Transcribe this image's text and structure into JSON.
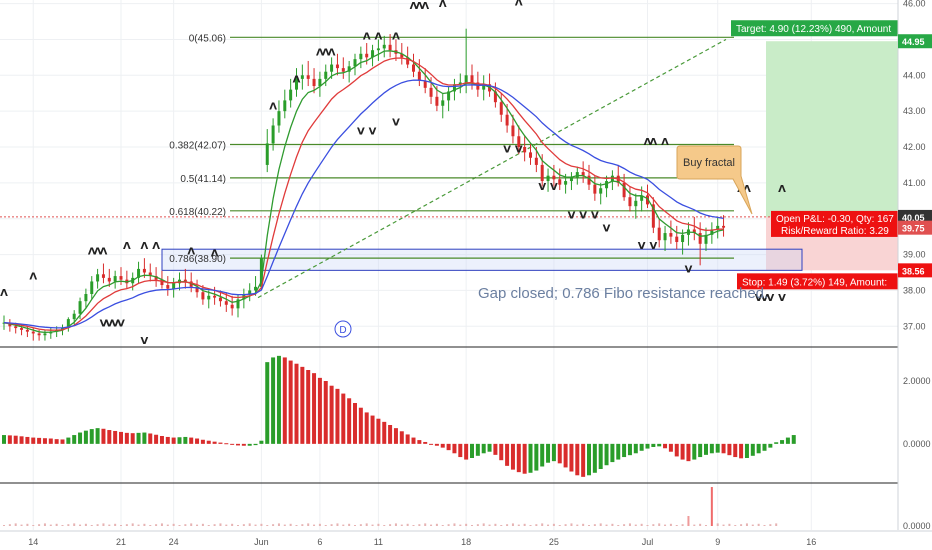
{
  "chart_data": {
    "type": "candlestick",
    "price_axis": {
      "ticks": [
        "46.00",
        "45.00",
        "44.00",
        "43.00",
        "42.00",
        "41.00",
        "40.00",
        "39.00",
        "38.00",
        "37.00"
      ],
      "tick_values": [
        46,
        45,
        44,
        43,
        42,
        41,
        40,
        39,
        38,
        37
      ],
      "range": [
        36.45,
        46.1
      ]
    },
    "x_axis": {
      "labels": [
        "14",
        "21",
        "24",
        "Jun",
        "6",
        "11",
        "18",
        "25",
        "Jul",
        "9",
        "16"
      ],
      "bar_index": [
        5,
        20,
        29,
        44,
        54,
        64,
        79,
        94,
        110,
        122,
        138
      ]
    },
    "ohlc": [
      [
        37.1,
        37.3,
        36.9,
        37.1
      ],
      [
        37.1,
        37.2,
        36.85,
        37.0
      ],
      [
        37.0,
        37.1,
        36.8,
        36.95
      ],
      [
        36.95,
        37.05,
        36.75,
        36.9
      ],
      [
        36.9,
        37.0,
        36.7,
        36.85
      ],
      [
        36.85,
        36.95,
        36.6,
        36.8
      ],
      [
        36.8,
        36.9,
        36.6,
        36.75
      ],
      [
        36.75,
        36.9,
        36.6,
        36.8
      ],
      [
        36.8,
        36.95,
        36.65,
        36.85
      ],
      [
        36.85,
        37.0,
        36.7,
        36.9
      ],
      [
        36.9,
        37.05,
        36.75,
        36.95
      ],
      [
        36.95,
        37.25,
        36.85,
        37.2
      ],
      [
        37.2,
        37.45,
        37.05,
        37.35
      ],
      [
        37.35,
        37.8,
        37.2,
        37.7
      ],
      [
        37.7,
        38.05,
        37.5,
        37.9
      ],
      [
        37.9,
        38.4,
        37.75,
        38.25
      ],
      [
        38.25,
        38.6,
        38.05,
        38.45
      ],
      [
        38.45,
        38.75,
        38.2,
        38.35
      ],
      [
        38.35,
        38.6,
        38.1,
        38.25
      ],
      [
        38.25,
        38.55,
        38.05,
        38.4
      ],
      [
        38.4,
        38.65,
        38.15,
        38.3
      ],
      [
        38.3,
        38.55,
        38.05,
        38.2
      ],
      [
        38.2,
        38.5,
        38.0,
        38.35
      ],
      [
        38.35,
        38.8,
        38.2,
        38.6
      ],
      [
        38.6,
        38.9,
        38.35,
        38.5
      ],
      [
        38.5,
        38.75,
        38.25,
        38.4
      ],
      [
        38.4,
        38.65,
        38.1,
        38.3
      ],
      [
        38.3,
        38.55,
        38.05,
        38.15
      ],
      [
        38.15,
        38.4,
        37.85,
        38.05
      ],
      [
        38.05,
        38.35,
        37.8,
        38.2
      ],
      [
        38.2,
        38.5,
        38.0,
        38.3
      ],
      [
        38.3,
        38.6,
        38.05,
        38.25
      ],
      [
        38.25,
        38.5,
        37.95,
        38.1
      ],
      [
        38.1,
        38.3,
        37.8,
        37.95
      ],
      [
        37.95,
        38.15,
        37.6,
        37.75
      ],
      [
        37.75,
        38.0,
        37.5,
        37.85
      ],
      [
        37.85,
        38.1,
        37.6,
        37.8
      ],
      [
        37.8,
        38.0,
        37.55,
        37.7
      ],
      [
        37.7,
        37.95,
        37.4,
        37.6
      ],
      [
        37.6,
        37.85,
        37.3,
        37.5
      ],
      [
        37.5,
        37.9,
        37.25,
        37.75
      ],
      [
        37.75,
        38.05,
        37.5,
        37.9
      ],
      [
        37.9,
        38.2,
        37.7,
        38.0
      ],
      [
        38.0,
        38.4,
        37.85,
        38.1
      ],
      [
        38.1,
        39.0,
        38.0,
        38.9
      ],
      [
        41.5,
        42.5,
        41.3,
        42.1
      ],
      [
        42.1,
        42.8,
        41.9,
        42.6
      ],
      [
        42.6,
        43.3,
        42.4,
        43.0
      ],
      [
        43.0,
        43.6,
        42.8,
        43.3
      ],
      [
        43.3,
        43.9,
        43.1,
        43.6
      ],
      [
        43.6,
        44.2,
        43.4,
        43.9
      ],
      [
        43.9,
        44.3,
        43.6,
        44.0
      ],
      [
        44.0,
        44.4,
        43.7,
        43.9
      ],
      [
        43.9,
        44.2,
        43.5,
        43.7
      ],
      [
        43.7,
        44.1,
        43.4,
        43.9
      ],
      [
        43.9,
        44.3,
        43.7,
        44.1
      ],
      [
        44.1,
        44.5,
        43.9,
        44.3
      ],
      [
        44.3,
        44.6,
        44.0,
        44.2
      ],
      [
        44.2,
        44.5,
        43.9,
        44.1
      ],
      [
        44.1,
        44.4,
        43.8,
        44.25
      ],
      [
        44.25,
        44.6,
        44.0,
        44.45
      ],
      [
        44.45,
        44.8,
        44.2,
        44.6
      ],
      [
        44.6,
        44.9,
        44.3,
        44.5
      ],
      [
        44.5,
        44.85,
        44.25,
        44.7
      ],
      [
        44.7,
        45.0,
        44.4,
        44.75
      ],
      [
        44.75,
        45.1,
        44.5,
        44.85
      ],
      [
        44.85,
        45.15,
        44.5,
        44.7
      ],
      [
        44.7,
        45.0,
        44.4,
        44.6
      ],
      [
        44.6,
        44.9,
        44.3,
        44.5
      ],
      [
        44.5,
        44.8,
        44.2,
        44.3
      ],
      [
        44.3,
        44.6,
        43.95,
        44.1
      ],
      [
        44.1,
        44.45,
        43.7,
        43.85
      ],
      [
        43.85,
        44.2,
        43.5,
        43.65
      ],
      [
        43.65,
        43.95,
        43.2,
        43.4
      ],
      [
        43.4,
        43.7,
        43.0,
        43.15
      ],
      [
        43.15,
        43.5,
        42.8,
        43.3
      ],
      [
        43.3,
        43.7,
        43.0,
        43.55
      ],
      [
        43.55,
        43.9,
        43.3,
        43.75
      ],
      [
        43.75,
        44.05,
        43.5,
        43.8
      ],
      [
        43.8,
        45.3,
        43.5,
        44.0
      ],
      [
        44.0,
        44.3,
        43.6,
        43.8
      ],
      [
        43.8,
        44.1,
        43.4,
        43.6
      ],
      [
        43.6,
        44.0,
        43.3,
        43.75
      ],
      [
        43.75,
        44.05,
        43.4,
        43.55
      ],
      [
        43.55,
        43.8,
        43.1,
        43.25
      ],
      [
        43.25,
        43.5,
        42.7,
        42.9
      ],
      [
        42.9,
        43.2,
        42.4,
        42.6
      ],
      [
        42.6,
        42.9,
        42.1,
        42.3
      ],
      [
        42.3,
        42.6,
        41.8,
        42.0
      ],
      [
        42.0,
        42.3,
        41.6,
        41.85
      ],
      [
        41.85,
        42.1,
        41.5,
        41.7
      ],
      [
        41.7,
        42.0,
        41.3,
        41.5
      ],
      [
        41.5,
        41.8,
        40.9,
        41.05
      ],
      [
        41.05,
        41.4,
        40.75,
        41.2
      ],
      [
        41.2,
        41.5,
        40.9,
        41.1
      ],
      [
        41.1,
        41.4,
        40.8,
        40.95
      ],
      [
        40.95,
        41.25,
        40.7,
        41.05
      ],
      [
        41.05,
        41.3,
        40.8,
        41.15
      ],
      [
        41.15,
        41.45,
        40.95,
        41.3
      ],
      [
        41.3,
        41.6,
        41.0,
        41.2
      ],
      [
        41.2,
        41.5,
        40.8,
        40.95
      ],
      [
        40.95,
        41.2,
        40.5,
        40.7
      ],
      [
        40.7,
        41.0,
        40.4,
        40.85
      ],
      [
        40.85,
        41.2,
        40.6,
        41.05
      ],
      [
        41.05,
        41.35,
        40.8,
        41.2
      ],
      [
        41.2,
        41.5,
        40.9,
        41.0
      ],
      [
        41.0,
        41.25,
        40.5,
        40.6
      ],
      [
        40.6,
        40.9,
        40.2,
        40.35
      ],
      [
        40.35,
        40.7,
        40.0,
        40.5
      ],
      [
        40.5,
        40.9,
        40.2,
        40.65
      ],
      [
        40.65,
        40.95,
        40.3,
        40.4
      ],
      [
        40.4,
        40.6,
        39.6,
        39.75
      ],
      [
        39.75,
        40.0,
        39.2,
        39.4
      ],
      [
        39.4,
        39.8,
        39.1,
        39.6
      ],
      [
        39.6,
        39.95,
        39.3,
        39.5
      ],
      [
        39.5,
        39.8,
        39.15,
        39.35
      ],
      [
        39.35,
        39.7,
        39.0,
        39.55
      ],
      [
        39.55,
        39.9,
        39.25,
        39.7
      ],
      [
        39.7,
        40.05,
        39.4,
        39.6
      ],
      [
        39.6,
        39.9,
        38.7,
        39.3
      ],
      [
        39.3,
        39.75,
        39.1,
        39.55
      ],
      [
        39.55,
        39.9,
        39.3,
        39.7
      ],
      [
        39.7,
        40.05,
        39.45,
        39.8
      ],
      [
        39.8,
        40.1,
        39.5,
        39.75
      ]
    ],
    "ema_lines": [
      {
        "name": "",
        "color": "#2f9b2f",
        "period": 5
      },
      {
        "name": "",
        "color": "#e03b3b",
        "period": 10
      },
      {
        "name": "",
        "color": "#3b4fe0",
        "period": 20
      }
    ],
    "fibonacci": [
      {
        "label": "0(45.06)",
        "price": 45.06
      },
      {
        "label": "0.382(42.07)",
        "price": 42.07
      },
      {
        "label": "0.5(41.14)",
        "price": 41.14
      },
      {
        "label": "0.618(40.22)",
        "price": 40.22
      },
      {
        "label": "0.786(38.90)",
        "price": 38.9
      }
    ],
    "fractals_up": [
      [
        0,
        37.85
      ],
      [
        5,
        38.3
      ],
      [
        15,
        39.0
      ],
      [
        16,
        39.0
      ],
      [
        17,
        39.0
      ],
      [
        21,
        39.15
      ],
      [
        24,
        39.15
      ],
      [
        26,
        39.15
      ],
      [
        32,
        39.0
      ],
      [
        36,
        38.95
      ],
      [
        46,
        43.05
      ],
      [
        50,
        43.8
      ],
      [
        54,
        44.55
      ],
      [
        55,
        44.55
      ],
      [
        56,
        44.55
      ],
      [
        62,
        45.0
      ],
      [
        64,
        45.0
      ],
      [
        67,
        45.0
      ],
      [
        70,
        45.85
      ],
      [
        71,
        45.85
      ],
      [
        72,
        45.85
      ],
      [
        75,
        45.9
      ],
      [
        88,
        45.95
      ],
      [
        110,
        42.05
      ],
      [
        111,
        42.05
      ],
      [
        113,
        42.05
      ],
      [
        121,
        41.35
      ],
      [
        126,
        40.75
      ],
      [
        127,
        40.75
      ],
      [
        133,
        40.75
      ]
    ],
    "fractals_down": [
      [
        17,
        37.0
      ],
      [
        18,
        37.0
      ],
      [
        19,
        37.0
      ],
      [
        20,
        37.0
      ],
      [
        24,
        36.5
      ],
      [
        61,
        42.35
      ],
      [
        63,
        42.35
      ],
      [
        67,
        42.6
      ],
      [
        86,
        41.85
      ],
      [
        88,
        41.85
      ],
      [
        92,
        40.8
      ],
      [
        94,
        40.8
      ],
      [
        97,
        40.0
      ],
      [
        99,
        40.0
      ],
      [
        101,
        40.0
      ],
      [
        103,
        39.65
      ],
      [
        109,
        39.15
      ],
      [
        111,
        39.15
      ],
      [
        117,
        38.5
      ],
      [
        129,
        37.7
      ],
      [
        130,
        37.7
      ],
      [
        131,
        37.7
      ],
      [
        133,
        37.7
      ]
    ],
    "oscillator": {
      "ticks": [
        "2.0000",
        "0.0000"
      ],
      "tick_values": [
        2,
        0
      ],
      "range": [
        -1.15,
        3.05
      ],
      "values": [
        0.28,
        0.27,
        0.26,
        0.24,
        0.22,
        0.2,
        0.19,
        0.18,
        0.17,
        0.15,
        0.14,
        0.2,
        0.28,
        0.36,
        0.42,
        0.47,
        0.5,
        0.48,
        0.44,
        0.41,
        0.38,
        0.35,
        0.34,
        0.35,
        0.36,
        0.33,
        0.29,
        0.25,
        0.22,
        0.2,
        0.21,
        0.22,
        0.2,
        0.17,
        0.13,
        0.1,
        0.07,
        0.04,
        0.02,
        -0.02,
        -0.05,
        -0.06,
        -0.06,
        -0.04,
        0.1,
        2.6,
        2.75,
        2.8,
        2.75,
        2.65,
        2.55,
        2.45,
        2.35,
        2.25,
        2.1,
        2.0,
        1.85,
        1.75,
        1.6,
        1.45,
        1.3,
        1.15,
        1.0,
        0.9,
        0.8,
        0.7,
        0.6,
        0.5,
        0.4,
        0.3,
        0.2,
        0.12,
        0.06,
        0.0,
        -0.06,
        -0.12,
        -0.2,
        -0.3,
        -0.42,
        -0.5,
        -0.45,
        -0.38,
        -0.3,
        -0.25,
        -0.35,
        -0.52,
        -0.7,
        -0.82,
        -0.9,
        -0.95,
        -0.92,
        -0.85,
        -0.72,
        -0.6,
        -0.55,
        -0.62,
        -0.75,
        -0.88,
        -1.0,
        -1.05,
        -1.0,
        -0.92,
        -0.8,
        -0.68,
        -0.58,
        -0.5,
        -0.42,
        -0.36,
        -0.3,
        -0.22,
        -0.15,
        -0.1,
        -0.08,
        -0.14,
        -0.25,
        -0.4,
        -0.5,
        -0.55,
        -0.5,
        -0.42,
        -0.35,
        -0.3,
        -0.28,
        -0.3,
        -0.36,
        -0.42,
        -0.46,
        -0.45,
        -0.38,
        -0.3,
        -0.22,
        -0.12,
        0.05,
        0.12,
        0.2,
        0.28
      ]
    },
    "volume": {
      "tick": "0.0000",
      "spike_bar": 121,
      "small_bars": [
        0,
        1,
        2,
        3,
        4,
        5,
        6,
        7,
        8,
        9,
        10,
        11,
        12,
        13,
        14,
        15,
        16,
        17,
        18,
        19,
        20,
        21,
        22,
        23,
        24,
        25,
        26,
        27,
        28,
        29,
        30,
        31,
        32,
        33,
        34,
        35,
        36,
        37,
        38,
        39,
        40,
        41,
        42,
        43,
        44,
        45,
        46,
        47,
        48,
        49,
        50,
        51,
        52,
        53,
        54,
        55,
        56,
        57,
        58,
        59,
        60,
        61,
        62,
        63,
        64,
        65,
        66,
        67,
        68,
        69,
        70,
        71,
        72,
        73,
        74,
        75,
        76,
        77,
        78,
        79,
        80,
        81,
        82,
        83,
        84,
        85,
        86,
        87,
        88,
        89,
        90,
        91,
        92,
        93,
        94,
        95,
        96,
        97,
        98,
        99,
        100,
        101,
        102,
        103,
        104,
        105,
        106,
        107,
        108,
        109,
        110,
        111,
        112,
        113,
        114,
        115,
        116,
        117,
        118,
        119,
        120,
        122,
        123,
        124,
        125,
        126,
        127,
        128,
        129,
        130,
        131,
        132
      ]
    },
    "annotations": {
      "target_label": "Target: 4.90 (12.23%) 490, Amount",
      "target_price_label": "44.95",
      "open_pnl": "Open P&L: -0.30, Qty: 167",
      "risk_reward": "Risk/Reward Ratio: 3.29",
      "entry_price_label": "40.05",
      "current_price_label": "39.75",
      "stop_label": "Stop: 1.49 (3.72%) 149, Amount:",
      "stop_price_label": "38.56",
      "buy_fractal_callout": "Buy fractal",
      "gap_note": "Gap closed; 0.786 Fibo resistance reached.",
      "dividend_marker": "D"
    },
    "levels": {
      "target": 44.95,
      "entry": 40.05,
      "current": 39.75,
      "stop": 38.56,
      "fib_box": [
        38.56,
        39.15
      ]
    },
    "colors": {
      "up": "#2a9d2a",
      "down": "#d92c2c",
      "fib_line": "#4a8a2a",
      "target_green": "#27a846",
      "stop_red": "#ee1111",
      "callout": "#f5c98a"
    }
  }
}
